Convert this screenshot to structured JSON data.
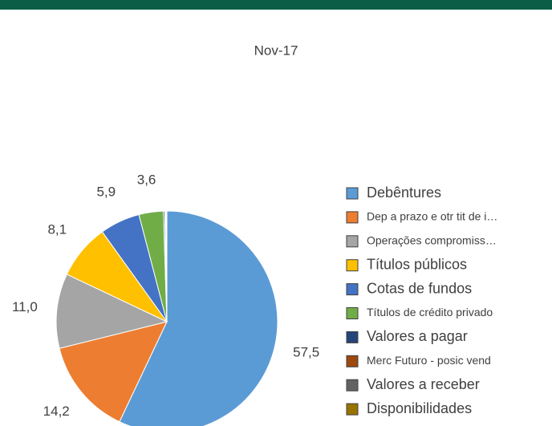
{
  "chart_data": {
    "type": "pie",
    "title": "Nov-17",
    "series": [
      {
        "name": "Debêntures",
        "color": "#5b9bd5",
        "values": [
          57.5
        ],
        "value_labels": [
          "57,5"
        ]
      },
      {
        "name": "Dep a prazo e otr tit de i…",
        "color": "#ed7d31",
        "values": [
          14.2
        ],
        "value_labels": [
          "14,2"
        ]
      },
      {
        "name": "Operações compromiss…",
        "color": "#a5a5a5",
        "values": [
          11.0
        ],
        "value_labels": [
          "11,0"
        ]
      },
      {
        "name": "Títulos públicos",
        "color": "#ffc000",
        "values": [
          8.1
        ],
        "value_labels": [
          "8,1"
        ]
      },
      {
        "name": "Cotas de fundos",
        "color": "#4472c4",
        "values": [
          5.9
        ],
        "value_labels": [
          "5,9"
        ]
      },
      {
        "name": "Títulos de crédito privado",
        "color": "#70ad47",
        "values": [
          3.6
        ],
        "value_labels": [
          "3,6"
        ]
      },
      {
        "name": "Valores a pagar",
        "color": "#264478",
        "values": [
          0.2
        ]
      },
      {
        "name": "Merc Futuro - posic vend",
        "color": "#9e480e",
        "values": [
          0.1
        ]
      },
      {
        "name": "Valores a receber",
        "color": "#636363",
        "values": [
          0.1
        ]
      },
      {
        "name": "Disponibilidades",
        "color": "#997300",
        "values": [
          0.1
        ]
      }
    ]
  }
}
